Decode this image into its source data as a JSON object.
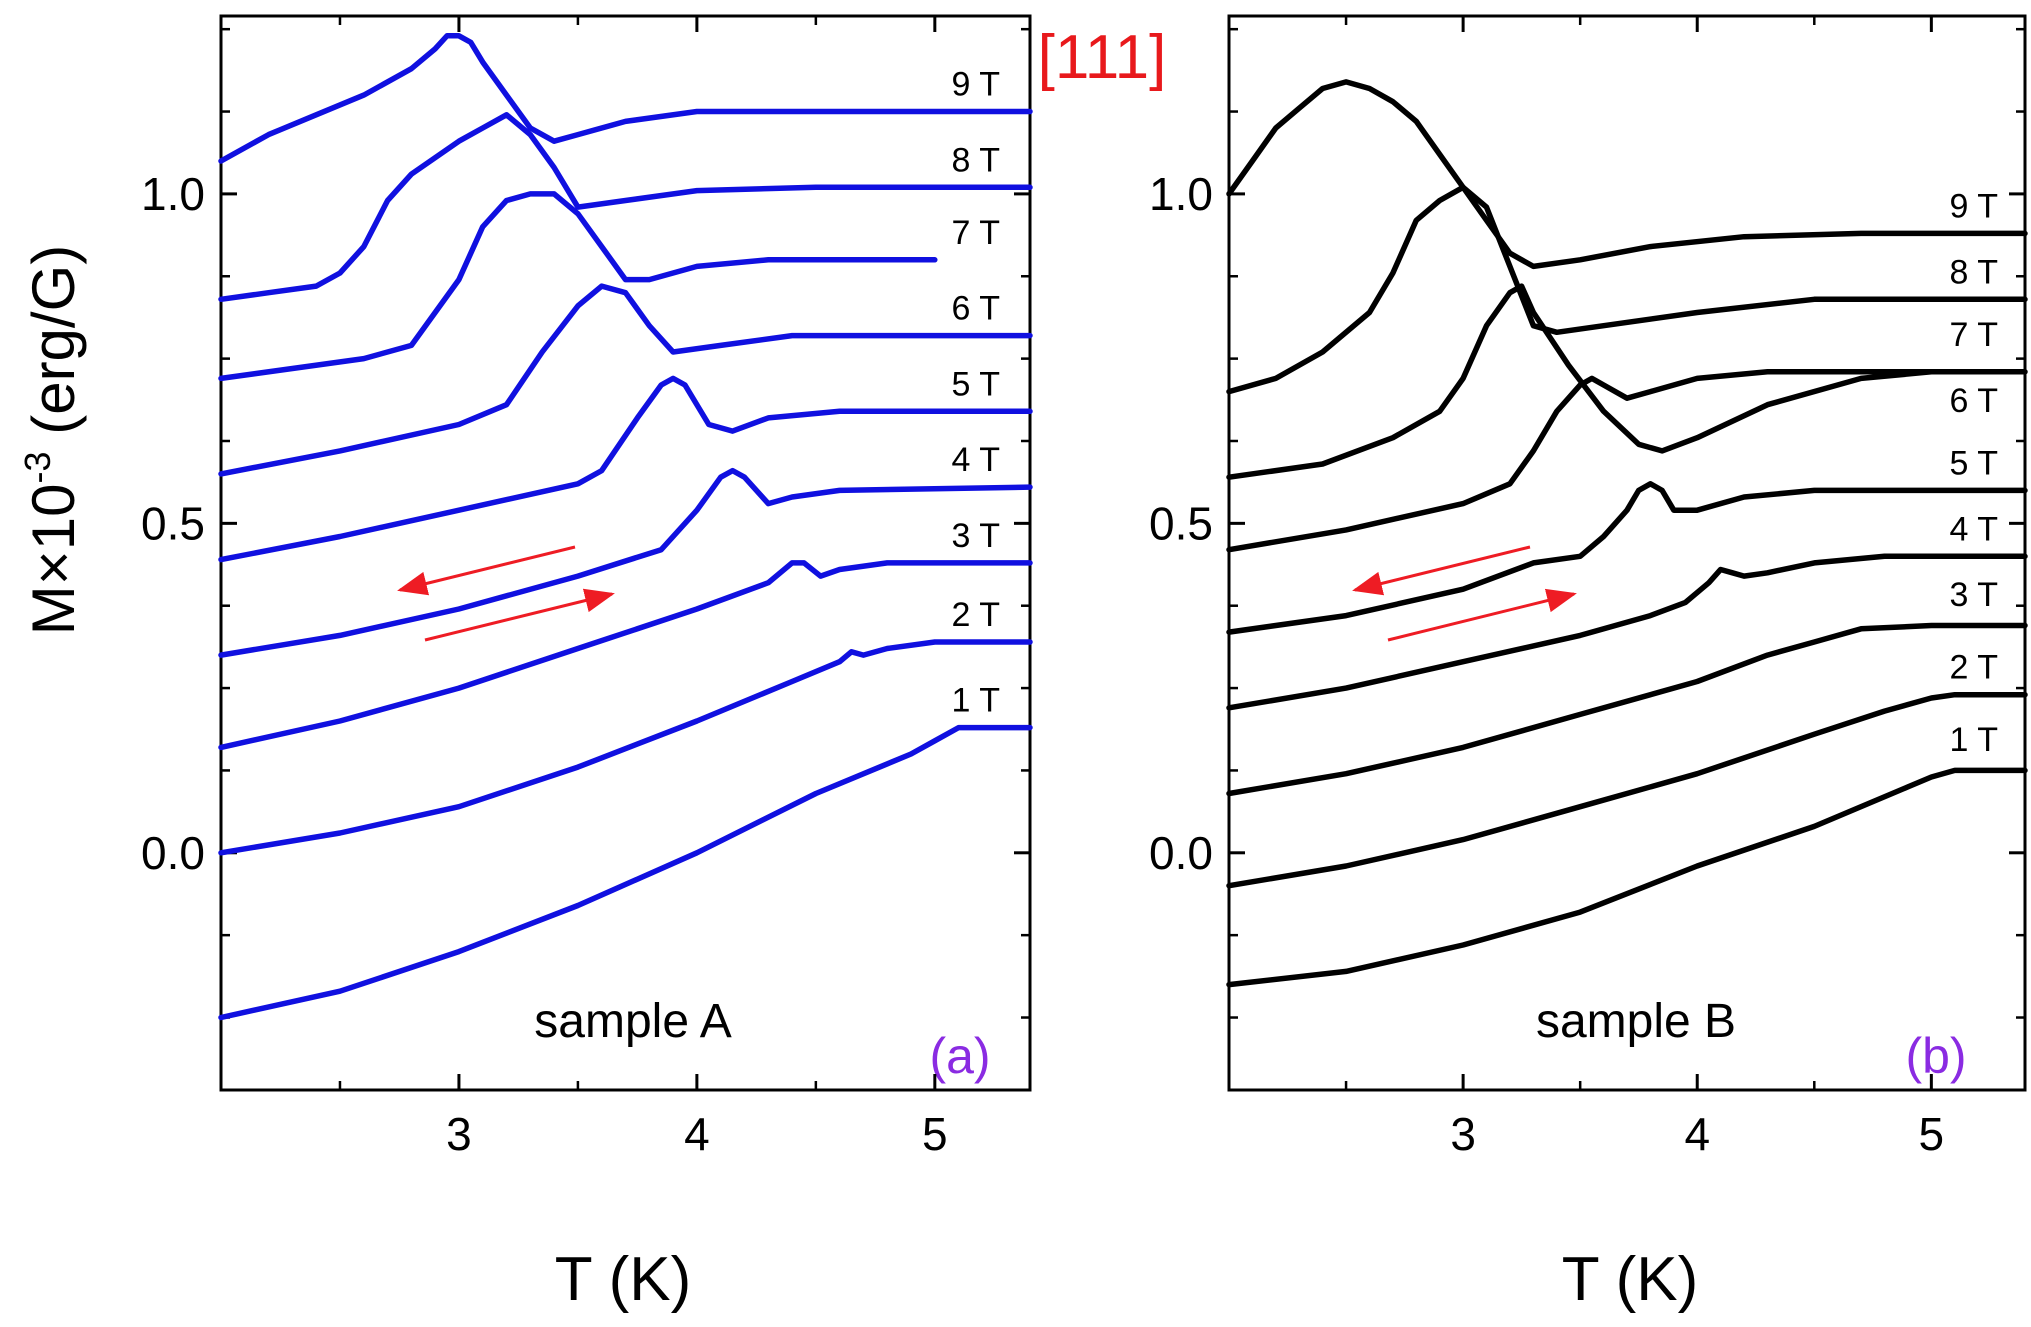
{
  "figure": {
    "ylabel_main": "M×10",
    "ylabel_exp": "-3",
    "ylabel_unit": " (erg/G)",
    "direction_label": "[111]",
    "direction_color": "#e8191c",
    "arrow_color": "#ee1c24"
  },
  "chart_data": [
    {
      "type": "line",
      "panel": "(a)",
      "title": "sample A",
      "panel_label_color": "#8a2be2",
      "line_color": "#1010e0",
      "xlabel": "T (K)",
      "ylabel": "M×10^-3 (erg/G)",
      "xlim": [
        2.0,
        5.4
      ],
      "ylim": [
        -0.36,
        1.27
      ],
      "xticks": [
        3,
        4,
        5
      ],
      "xtick_labels": [
        "3",
        "4",
        "5"
      ],
      "yticks": [
        0.0,
        0.5,
        1.0
      ],
      "ytick_labels": [
        "0.0",
        "0.5",
        "1.0"
      ],
      "field_labels": [
        "1 T",
        "2 T",
        "3 T",
        "4 T",
        "5 T",
        "6 T",
        "7 T",
        "8 T",
        "9 T"
      ],
      "field_label_y": [
        0.19,
        0.32,
        0.44,
        0.555,
        0.67,
        0.785,
        0.9,
        1.01,
        1.125
      ],
      "series": [
        {
          "name": "1 T",
          "x": [
            2.0,
            2.5,
            3.0,
            3.5,
            4.0,
            4.5,
            4.9,
            5.0,
            5.1,
            5.4
          ],
          "y": [
            -0.25,
            -0.21,
            -0.15,
            -0.08,
            0.0,
            0.09,
            0.15,
            0.17,
            0.19,
            0.19
          ]
        },
        {
          "name": "2 T",
          "x": [
            2.0,
            2.5,
            3.0,
            3.5,
            4.0,
            4.4,
            4.6,
            4.65,
            4.7,
            4.8,
            5.0,
            5.4
          ],
          "y": [
            0.0,
            0.03,
            0.07,
            0.13,
            0.2,
            0.26,
            0.29,
            0.305,
            0.3,
            0.31,
            0.32,
            0.32
          ]
        },
        {
          "name": "3 T",
          "x": [
            2.0,
            2.5,
            3.0,
            3.5,
            4.0,
            4.3,
            4.4,
            4.45,
            4.52,
            4.6,
            4.8,
            5.4
          ],
          "y": [
            0.16,
            0.2,
            0.25,
            0.31,
            0.37,
            0.41,
            0.44,
            0.44,
            0.42,
            0.43,
            0.44,
            0.44
          ]
        },
        {
          "name": "4 T",
          "x": [
            2.0,
            2.5,
            3.0,
            3.5,
            3.85,
            4.0,
            4.1,
            4.15,
            4.2,
            4.3,
            4.4,
            4.6,
            5.4
          ],
          "y": [
            0.3,
            0.33,
            0.37,
            0.42,
            0.46,
            0.52,
            0.57,
            0.58,
            0.57,
            0.53,
            0.54,
            0.55,
            0.555
          ]
        },
        {
          "name": "5 T",
          "x": [
            2.0,
            2.5,
            3.0,
            3.5,
            3.6,
            3.75,
            3.85,
            3.9,
            3.95,
            4.05,
            4.15,
            4.3,
            4.6,
            5.4
          ],
          "y": [
            0.445,
            0.48,
            0.52,
            0.56,
            0.58,
            0.66,
            0.71,
            0.72,
            0.71,
            0.65,
            0.64,
            0.66,
            0.67,
            0.67
          ]
        },
        {
          "name": "6 T",
          "x": [
            2.0,
            2.5,
            3.0,
            3.2,
            3.35,
            3.5,
            3.6,
            3.7,
            3.8,
            3.9,
            4.1,
            4.4,
            5.4
          ],
          "y": [
            0.575,
            0.61,
            0.65,
            0.68,
            0.76,
            0.83,
            0.86,
            0.85,
            0.8,
            0.76,
            0.77,
            0.785,
            0.785
          ]
        },
        {
          "name": "7 T",
          "x": [
            2.0,
            2.3,
            2.6,
            2.8,
            3.0,
            3.1,
            3.2,
            3.3,
            3.4,
            3.5,
            3.6,
            3.7,
            3.8,
            4.0,
            4.3,
            4.6,
            5.0
          ],
          "y": [
            0.72,
            0.735,
            0.75,
            0.77,
            0.87,
            0.95,
            0.99,
            1.0,
            1.0,
            0.97,
            0.92,
            0.87,
            0.87,
            0.89,
            0.9,
            0.9,
            0.9
          ]
        },
        {
          "name": "8 T",
          "x": [
            2.0,
            2.2,
            2.4,
            2.5,
            2.6,
            2.7,
            2.8,
            3.0,
            3.1,
            3.2,
            3.3,
            3.4,
            3.5,
            3.7,
            4.0,
            4.5,
            5.4
          ],
          "y": [
            0.84,
            0.85,
            0.86,
            0.88,
            0.92,
            0.99,
            1.03,
            1.08,
            1.1,
            1.12,
            1.09,
            1.04,
            0.98,
            0.99,
            1.005,
            1.01,
            1.01
          ]
        },
        {
          "name": "9 T",
          "x": [
            2.0,
            2.2,
            2.4,
            2.6,
            2.8,
            2.9,
            2.95,
            3.0,
            3.05,
            3.1,
            3.2,
            3.3,
            3.4,
            3.5,
            3.7,
            4.0,
            4.5,
            5.4
          ],
          "y": [
            1.05,
            1.09,
            1.12,
            1.15,
            1.19,
            1.22,
            1.24,
            1.24,
            1.23,
            1.2,
            1.15,
            1.1,
            1.08,
            1.09,
            1.11,
            1.125,
            1.125,
            1.125
          ]
        }
      ]
    },
    {
      "type": "line",
      "panel": "(b)",
      "title": "sample B",
      "panel_label_color": "#8a2be2",
      "line_color": "#000000",
      "xlabel": "T (K)",
      "ylabel": "",
      "xlim": [
        2.0,
        5.4
      ],
      "ylim": [
        -0.36,
        1.27
      ],
      "xticks": [
        3,
        4,
        5
      ],
      "xtick_labels": [
        "3",
        "4",
        "5"
      ],
      "yticks": [
        0.0,
        0.5,
        1.0
      ],
      "ytick_labels": [
        "0.0",
        "0.5",
        "1.0"
      ],
      "field_labels": [
        "1 T",
        "2 T",
        "3 T",
        "4 T",
        "5 T",
        "6 T",
        "7 T",
        "8 T",
        "9 T"
      ],
      "field_label_y": [
        0.13,
        0.24,
        0.35,
        0.45,
        0.55,
        0.645,
        0.745,
        0.84,
        0.94
      ],
      "series": [
        {
          "name": "1 T",
          "x": [
            2.0,
            2.5,
            3.0,
            3.5,
            4.0,
            4.5,
            4.9,
            5.0,
            5.1,
            5.4
          ],
          "y": [
            -0.2,
            -0.18,
            -0.14,
            -0.09,
            -0.02,
            0.04,
            0.1,
            0.115,
            0.125,
            0.125
          ]
        },
        {
          "name": "2 T",
          "x": [
            2.0,
            2.5,
            3.0,
            3.5,
            4.0,
            4.5,
            4.8,
            5.0,
            5.1,
            5.4
          ],
          "y": [
            -0.05,
            -0.02,
            0.02,
            0.07,
            0.12,
            0.18,
            0.215,
            0.235,
            0.24,
            0.24
          ]
        },
        {
          "name": "3 T",
          "x": [
            2.0,
            2.5,
            3.0,
            3.5,
            4.0,
            4.3,
            4.5,
            4.7,
            5.0,
            5.4
          ],
          "y": [
            0.09,
            0.12,
            0.16,
            0.21,
            0.26,
            0.3,
            0.32,
            0.34,
            0.345,
            0.345
          ]
        },
        {
          "name": "4 T",
          "x": [
            2.0,
            2.5,
            3.0,
            3.5,
            3.8,
            3.95,
            4.05,
            4.1,
            4.15,
            4.2,
            4.3,
            4.5,
            4.8,
            5.4
          ],
          "y": [
            0.22,
            0.25,
            0.29,
            0.33,
            0.36,
            0.38,
            0.41,
            0.43,
            0.425,
            0.42,
            0.425,
            0.44,
            0.45,
            0.45
          ]
        },
        {
          "name": "5 T",
          "x": [
            2.0,
            2.5,
            3.0,
            3.3,
            3.5,
            3.6,
            3.7,
            3.75,
            3.8,
            3.85,
            3.9,
            4.0,
            4.2,
            4.5,
            5.4
          ],
          "y": [
            0.335,
            0.36,
            0.4,
            0.44,
            0.45,
            0.48,
            0.52,
            0.55,
            0.56,
            0.55,
            0.52,
            0.52,
            0.54,
            0.55,
            0.55
          ]
        },
        {
          "name": "6 T",
          "x": [
            2.0,
            2.5,
            3.0,
            3.2,
            3.3,
            3.4,
            3.5,
            3.55,
            3.6,
            3.7,
            3.8,
            4.0,
            4.3,
            5.4
          ],
          "y": [
            0.46,
            0.49,
            0.53,
            0.56,
            0.61,
            0.67,
            0.71,
            0.72,
            0.71,
            0.69,
            0.7,
            0.72,
            0.73,
            0.73
          ]
        },
        {
          "name": "7 T",
          "x": [
            2.0,
            2.4,
            2.7,
            2.9,
            3.0,
            3.1,
            3.2,
            3.25,
            3.3,
            3.45,
            3.6,
            3.75,
            3.85,
            4.0,
            4.3,
            4.7,
            5.0
          ],
          "y": [
            0.57,
            0.59,
            0.63,
            0.67,
            0.72,
            0.8,
            0.85,
            0.86,
            0.82,
            0.74,
            0.67,
            0.62,
            0.61,
            0.63,
            0.68,
            0.72,
            0.73
          ]
        },
        {
          "name": "8 T",
          "x": [
            2.0,
            2.2,
            2.4,
            2.6,
            2.7,
            2.8,
            2.9,
            3.0,
            3.1,
            3.2,
            3.3,
            3.4,
            3.6,
            4.0,
            4.5,
            5.4
          ],
          "y": [
            0.7,
            0.72,
            0.76,
            0.82,
            0.88,
            0.96,
            0.99,
            1.01,
            0.98,
            0.89,
            0.8,
            0.79,
            0.8,
            0.82,
            0.84,
            0.84
          ]
        },
        {
          "name": "9 T",
          "x": [
            2.0,
            2.1,
            2.2,
            2.3,
            2.4,
            2.5,
            2.6,
            2.7,
            2.8,
            2.9,
            3.0,
            3.1,
            3.2,
            3.3,
            3.5,
            3.8,
            4.2,
            4.7,
            5.4
          ],
          "y": [
            1.0,
            1.05,
            1.1,
            1.13,
            1.16,
            1.17,
            1.16,
            1.14,
            1.11,
            1.06,
            1.01,
            0.96,
            0.91,
            0.89,
            0.9,
            0.92,
            0.935,
            0.94,
            0.94
          ]
        }
      ]
    }
  ]
}
